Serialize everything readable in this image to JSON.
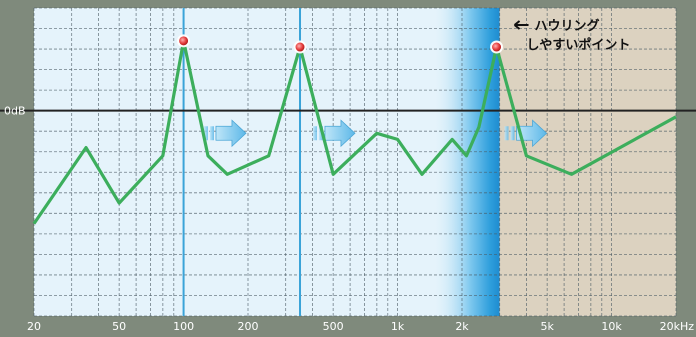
{
  "chart_data": {
    "type": "line",
    "x": [
      20,
      35,
      50,
      80,
      100,
      130,
      160,
      250,
      350,
      500,
      800,
      1000,
      1300,
      1800,
      2100,
      2400,
      2900,
      4000,
      6500,
      20000
    ],
    "values": [
      -5.5,
      -1.8,
      -4.5,
      -2.2,
      3.4,
      -2.2,
      -3.1,
      -2.2,
      3.1,
      -3.1,
      -1.1,
      -1.4,
      -3.1,
      -1.4,
      -2.2,
      -0.8,
      3.1,
      -2.2,
      -3.1,
      -0.3
    ],
    "peaks": [
      {
        "x": 100,
        "y": 3.4
      },
      {
        "x": 350,
        "y": 3.1
      },
      {
        "x": 2900,
        "y": 3.1
      }
    ],
    "x_tick_labels": [
      {
        "value": 20,
        "label": "20"
      },
      {
        "value": 50,
        "label": "50"
      },
      {
        "value": 100,
        "label": "100"
      },
      {
        "value": 200,
        "label": "200"
      },
      {
        "value": 500,
        "label": "500"
      },
      {
        "value": 1000,
        "label": "1k"
      },
      {
        "value": 2000,
        "label": "2k"
      },
      {
        "value": 5000,
        "label": "5k"
      },
      {
        "value": 10000,
        "label": "10k"
      },
      {
        "value": 20000,
        "label": "20kHz"
      }
    ],
    "y_label": "0dB",
    "annotation_lines": [
      "ハウリング",
      "しやすいポイント"
    ],
    "xscale": "log",
    "xlim": [
      20,
      20000
    ],
    "ylim": [
      -10,
      5
    ],
    "grid": true,
    "colors": {
      "background": "#7f8a7c",
      "plot_area": "#e5f3fb",
      "grid": "#4a5a63",
      "line": "#3cae5c",
      "zero_line": "#222222",
      "marker_fill": "#e43b3b",
      "cursor": "#3aa3d8",
      "band": "#52b6e8",
      "beige_region": "#dcd2c0",
      "arrow": "#7cc6ec"
    }
  }
}
